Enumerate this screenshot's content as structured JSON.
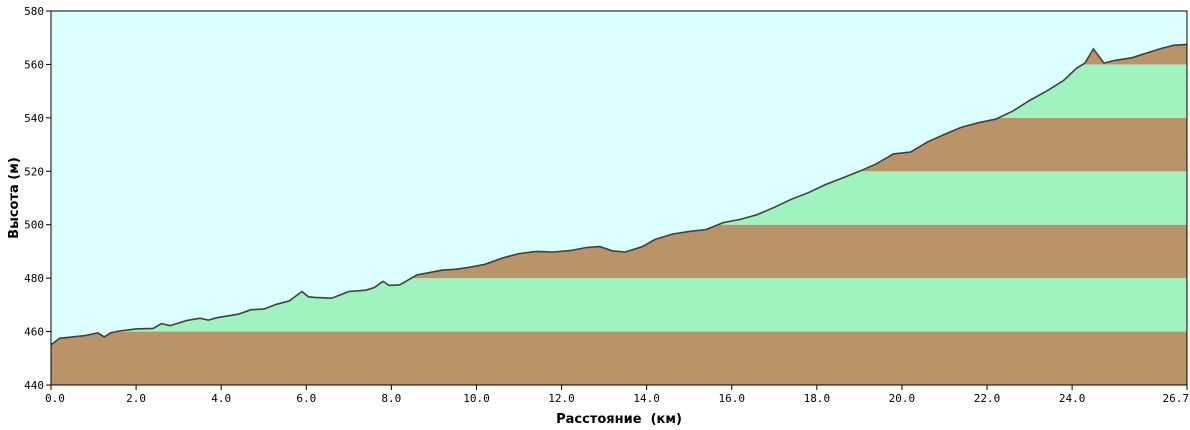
{
  "chart_data": {
    "type": "area",
    "title": "",
    "xlabel": "Расстояние  (км)",
    "ylabel": "Высота (м)",
    "xlim": [
      0,
      26.7
    ],
    "ylim": [
      440,
      580
    ],
    "x_ticks": [
      "0.0",
      "2.0",
      "4.0",
      "6.0",
      "8.0",
      "10.0",
      "12.0",
      "14.0",
      "16.0",
      "18.0",
      "20.0",
      "22.0",
      "24.0",
      "26.7"
    ],
    "y_ticks": [
      "440",
      "460",
      "480",
      "500",
      "520",
      "540",
      "560",
      "580"
    ],
    "grid": false,
    "colors": {
      "sky": "#DCFFFF",
      "band_brown": "#BA9468",
      "band_green": "#9EF3BE",
      "profile_line": "#404040"
    },
    "bands": [
      {
        "from": 440,
        "to": 460,
        "color": "#BA9468"
      },
      {
        "from": 460,
        "to": 480,
        "color": "#9EF3BE"
      },
      {
        "from": 480,
        "to": 500,
        "color": "#BA9468"
      },
      {
        "from": 500,
        "to": 520,
        "color": "#9EF3BE"
      },
      {
        "from": 520,
        "to": 540,
        "color": "#BA9468"
      },
      {
        "from": 540,
        "to": 560,
        "color": "#9EF3BE"
      },
      {
        "from": 560,
        "to": 580,
        "color": "#BA9468"
      }
    ],
    "series": [
      {
        "x": [
          0.0,
          0.2,
          0.5,
          0.8,
          1.1,
          1.25,
          1.4,
          1.6,
          2.0,
          2.4,
          2.6,
          2.8,
          3.2,
          3.5,
          3.7,
          3.9,
          4.1,
          4.4,
          4.7,
          5.0,
          5.3,
          5.6,
          5.9,
          6.05,
          6.2,
          6.6,
          7.0,
          7.4,
          7.6,
          7.8,
          7.95,
          8.2,
          8.6,
          8.8,
          9.2,
          9.5,
          9.8,
          10.2,
          10.6,
          11.0,
          11.4,
          11.8,
          12.2,
          12.6,
          12.9,
          13.2,
          13.5,
          13.9,
          14.2,
          14.6,
          15.0,
          15.4,
          15.8,
          16.2,
          16.6,
          17.0,
          17.4,
          17.8,
          18.2,
          18.6,
          19.0,
          19.4,
          19.8,
          20.2,
          20.6,
          21.0,
          21.4,
          21.8,
          22.2,
          22.6,
          23.0,
          23.4,
          23.8,
          24.1,
          24.3,
          24.5,
          24.75,
          25.0,
          25.4,
          25.8,
          26.1,
          26.4,
          26.7
        ],
        "y": [
          455.0,
          457.5,
          458.0,
          458.5,
          459.5,
          458.0,
          459.5,
          460.2,
          461.0,
          461.2,
          463.0,
          462.2,
          464.2,
          465.0,
          464.3,
          465.2,
          465.7,
          466.5,
          468.2,
          468.4,
          470.2,
          471.5,
          475.0,
          473.0,
          472.8,
          472.5,
          475.0,
          475.5,
          476.5,
          478.8,
          477.3,
          477.5,
          481.2,
          481.8,
          483.0,
          483.3,
          484.0,
          485.2,
          487.5,
          489.2,
          490.0,
          489.8,
          490.3,
          491.5,
          491.8,
          490.2,
          489.8,
          491.8,
          494.5,
          496.5,
          497.5,
          498.2,
          500.8,
          502.0,
          503.8,
          506.5,
          509.5,
          512.0,
          515.0,
          517.5,
          520.0,
          522.8,
          526.5,
          527.2,
          531.0,
          533.8,
          536.5,
          538.2,
          539.5,
          542.5,
          546.5,
          550.0,
          554.0,
          558.5,
          560.5,
          565.8,
          560.5,
          561.5,
          562.5,
          564.5,
          566.0,
          567.2,
          567.5
        ]
      }
    ]
  }
}
